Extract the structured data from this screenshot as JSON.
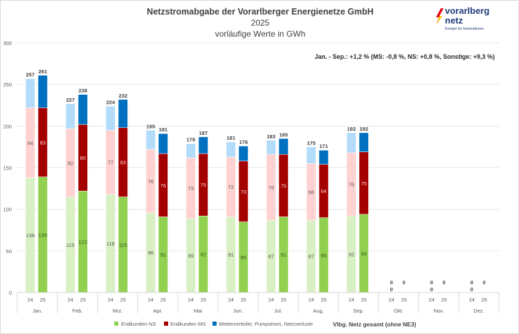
{
  "logo": {
    "line1": "vorarlberg",
    "line2": "netz",
    "tagline": "Energie für Generationen."
  },
  "chart_data": {
    "type": "bar",
    "stacked": true,
    "title": "Netzstromabgabe der Vorarlberger Energienetze GmbH",
    "subtitle1": "2025",
    "subtitle2": "vorläufige Werte in GWh",
    "annotation": "Jan. - Sep.: +1,2 % (MS: -0,8 %, NS: +0,8 %, Sonstige: +9,3 %)",
    "categories": [
      "Jan.",
      "Feb.",
      "Mrz.",
      "Apr.",
      "Mai",
      "Jun.",
      "Jul.",
      "Aug.",
      "Sep.",
      "Okt.",
      "Nov.",
      "Dez."
    ],
    "years": [
      "24",
      "25"
    ],
    "ylim": [
      0,
      300
    ],
    "yticks": [
      0,
      50,
      100,
      150,
      200,
      250,
      300
    ],
    "grid": true,
    "legend_position": "bottom",
    "series": [
      {
        "name": "Endkunden NS",
        "color_24": "#d9efc4",
        "color_25": "#92d050",
        "values_24": [
          138,
          115,
          118,
          96,
          89,
          91,
          87,
          87,
          92,
          0,
          0,
          0
        ],
        "values_25": [
          139,
          122,
          115,
          91,
          92,
          85,
          91,
          90,
          94,
          null,
          null,
          null
        ]
      },
      {
        "name": "Endkunden MS",
        "color_24": "#ffd1d1",
        "color_25": "#a50000",
        "values_24": [
          84,
          82,
          77,
          76,
          73,
          72,
          79,
          68,
          76,
          0,
          0,
          0
        ],
        "values_25": [
          83,
          80,
          83,
          76,
          75,
          73,
          75,
          64,
          75,
          null,
          null,
          null
        ]
      },
      {
        "name": "Weiterverteiler, Pumpstrom, Netzverluste",
        "color_24": "#b3dcfb",
        "color_25": "#0070c0",
        "values_24": [
          35,
          30,
          29,
          23,
          17,
          18,
          17,
          20,
          24,
          0,
          0,
          0
        ],
        "values_25": [
          39,
          36,
          34,
          24,
          20,
          18,
          19,
          17,
          23,
          null,
          null,
          null
        ]
      }
    ],
    "totals_24": [
      257,
      227,
      224,
      195,
      179,
      181,
      183,
      175,
      192,
      0,
      0,
      0
    ],
    "totals_25": [
      261,
      238,
      232,
      191,
      187,
      176,
      185,
      171,
      192,
      0,
      0,
      0
    ],
    "total_legend": "Vlbg. Netz gesamt (ohne NE3)"
  }
}
